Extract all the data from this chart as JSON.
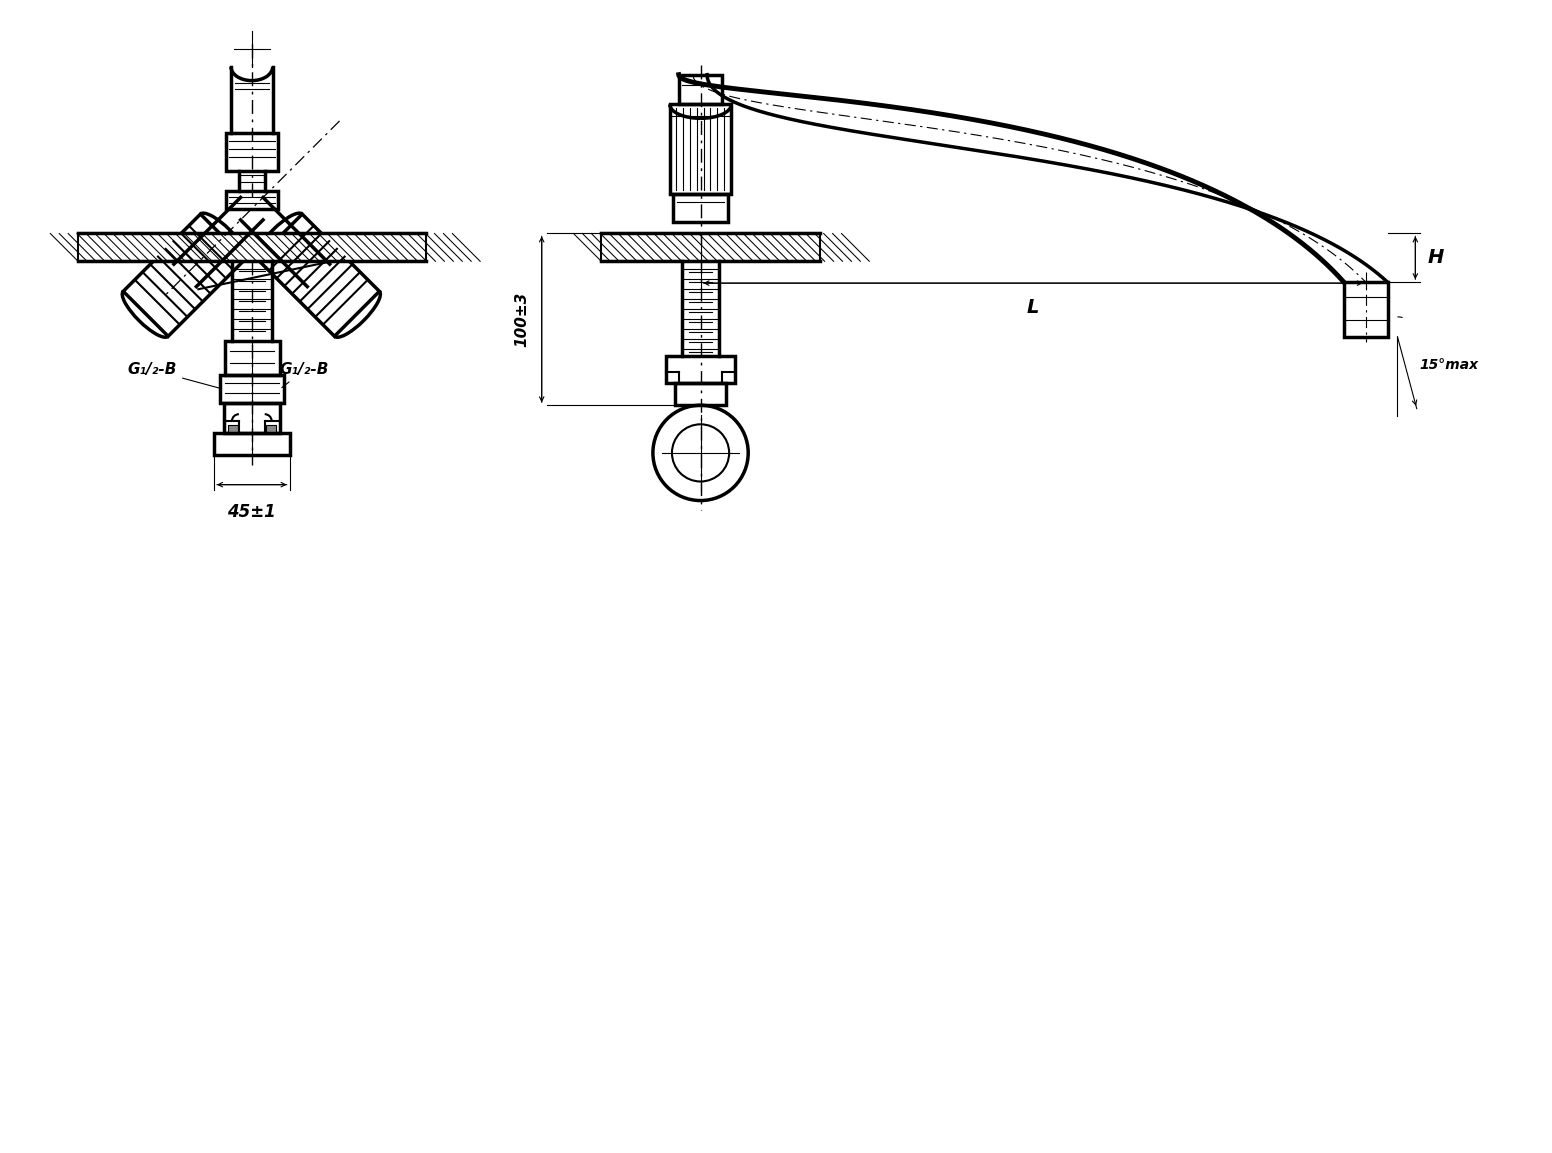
{
  "bg_color": "#ffffff",
  "line_color": "#000000",
  "fig_width": 15.52,
  "fig_height": 11.53,
  "annotations": {
    "g12_left": "G₁/₂-B",
    "g12_right": "G₁/₂-B",
    "dim_45": "45±1",
    "dim_100": "100±3",
    "dim_H": "H",
    "dim_L": "L",
    "dim_15": "15°max"
  }
}
